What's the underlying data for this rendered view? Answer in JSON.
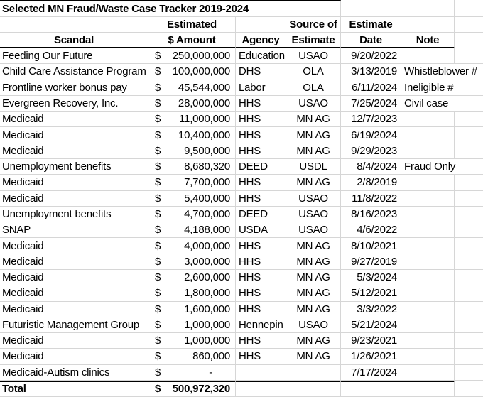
{
  "title": "Selected MN Fraud/Waste Case Tracker 2019-2024",
  "currency_symbol": "$",
  "columns": {
    "scandal": {
      "line1": "",
      "line2": "Scandal"
    },
    "amount": {
      "line1": "Estimated",
      "line2": "$ Amount"
    },
    "agency": {
      "line1": "",
      "line2": "Agency"
    },
    "source": {
      "line1": "Source of",
      "line2": "Estimate"
    },
    "date": {
      "line1": "Estimate",
      "line2": "Date"
    },
    "note": {
      "line1": "",
      "line2": "Note"
    }
  },
  "rows": [
    {
      "scandal": "Feeding Our Future",
      "amount": "250,000,000",
      "agency": "Education",
      "source": "USAO",
      "date": "9/20/2022",
      "note": ""
    },
    {
      "scandal": "Child Care Assistance Program",
      "amount": "100,000,000",
      "agency": "DHS",
      "source": "OLA",
      "date": "3/13/2019",
      "note": "Whistleblower #"
    },
    {
      "scandal": "Frontline worker bonus pay",
      "amount": "45,544,000",
      "agency": "Labor",
      "source": "OLA",
      "date": "6/11/2024",
      "note": "Ineligible #"
    },
    {
      "scandal": "Evergreen Recovery, Inc.",
      "amount": "28,000,000",
      "agency": "HHS",
      "source": "USAO",
      "date": "7/25/2024",
      "note": "Civil case"
    },
    {
      "scandal": "Medicaid",
      "amount": "11,000,000",
      "agency": "HHS",
      "source": "MN AG",
      "date": "12/7/2023",
      "note": ""
    },
    {
      "scandal": "Medicaid",
      "amount": "10,400,000",
      "agency": "HHS",
      "source": "MN AG",
      "date": "6/19/2024",
      "note": ""
    },
    {
      "scandal": "Medicaid",
      "amount": "9,500,000",
      "agency": "HHS",
      "source": "MN AG",
      "date": "9/29/2023",
      "note": ""
    },
    {
      "scandal": "Unemployment benefits",
      "amount": "8,680,320",
      "agency": "DEED",
      "source": "USDL",
      "date": "8/4/2024",
      "note": "Fraud Only"
    },
    {
      "scandal": "Medicaid",
      "amount": "7,700,000",
      "agency": "HHS",
      "source": "MN AG",
      "date": "2/8/2019",
      "note": ""
    },
    {
      "scandal": "Medicaid",
      "amount": "5,400,000",
      "agency": "HHS",
      "source": "USAO",
      "date": "11/8/2022",
      "note": ""
    },
    {
      "scandal": "Unemployment benefits",
      "amount": "4,700,000",
      "agency": "DEED",
      "source": "USAO",
      "date": "8/16/2023",
      "note": ""
    },
    {
      "scandal": "SNAP",
      "amount": "4,188,000",
      "agency": "USDA",
      "source": "USAO",
      "date": "4/6/2022",
      "note": ""
    },
    {
      "scandal": "Medicaid",
      "amount": "4,000,000",
      "agency": "HHS",
      "source": "MN AG",
      "date": "8/10/2021",
      "note": ""
    },
    {
      "scandal": "Medicaid",
      "amount": "3,000,000",
      "agency": "HHS",
      "source": "MN AG",
      "date": "9/27/2019",
      "note": ""
    },
    {
      "scandal": "Medicaid",
      "amount": "2,600,000",
      "agency": "HHS",
      "source": "MN AG",
      "date": "5/3/2024",
      "note": ""
    },
    {
      "scandal": "Medicaid",
      "amount": "1,800,000",
      "agency": "HHS",
      "source": "MN AG",
      "date": "5/12/2021",
      "note": ""
    },
    {
      "scandal": "Medicaid",
      "amount": "1,600,000",
      "agency": "HHS",
      "source": "MN AG",
      "date": "3/3/2022",
      "note": ""
    },
    {
      "scandal": "Futuristic Management Group",
      "amount": "1,000,000",
      "agency": "Hennepin",
      "source": "USAO",
      "date": "5/21/2024",
      "note": ""
    },
    {
      "scandal": "Medicaid",
      "amount": "1,000,000",
      "agency": "HHS",
      "source": "MN AG",
      "date": "9/23/2021",
      "note": ""
    },
    {
      "scandal": "Medicaid",
      "amount": "860,000",
      "agency": "HHS",
      "source": "MN AG",
      "date": "1/26/2021",
      "note": ""
    },
    {
      "scandal": "Medicaid-Autism clinics",
      "amount": "-",
      "agency": "",
      "source": "",
      "date": "7/17/2024",
      "note": ""
    }
  ],
  "total": {
    "label": "Total",
    "amount": "500,972,320"
  },
  "colors": {
    "gridline": "#d6d6d6",
    "border": "#000000",
    "text": "#000000",
    "background": "#ffffff"
  }
}
